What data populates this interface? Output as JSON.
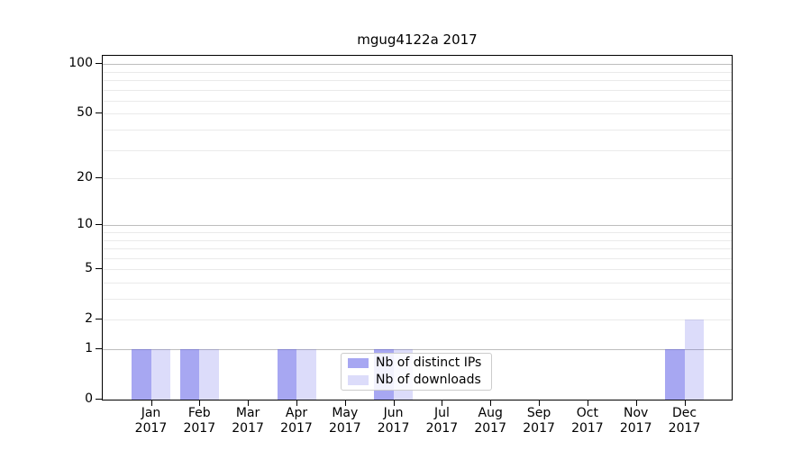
{
  "title": "mgug4122a 2017",
  "chart_data": {
    "type": "bar",
    "title": "mgug4122a 2017",
    "categories": [
      "Jan",
      "Feb",
      "Mar",
      "Apr",
      "May",
      "Jun",
      "Jul",
      "Aug",
      "Sep",
      "Oct",
      "Nov",
      "Dec"
    ],
    "x_sublabel": "2017",
    "series": [
      {
        "name": "Nb of distinct IPs",
        "color": "rgba(80,80,230,0.50)",
        "values": [
          1,
          1,
          0,
          1,
          0,
          1,
          0,
          0,
          0,
          0,
          0,
          1
        ]
      },
      {
        "name": "Nb of downloads",
        "color": "rgba(80,80,230,0.20)",
        "values": [
          1,
          1,
          0,
          1,
          0,
          1,
          0,
          0,
          0,
          0,
          0,
          2
        ]
      }
    ],
    "y_axis": {
      "scale": "log10(1+y)",
      "tick_values": [
        0,
        1,
        2,
        5,
        10,
        20,
        50,
        100
      ],
      "tick_labels": [
        "0",
        "1",
        "2",
        "5",
        "10",
        "20",
        "50",
        "100"
      ],
      "ylim": [
        0,
        112
      ],
      "minor_gridlines": [
        1,
        2,
        3,
        4,
        5,
        6,
        7,
        8,
        9,
        10,
        20,
        30,
        40,
        50,
        60,
        70,
        80,
        90,
        100
      ],
      "major_gridlines": [
        1,
        10,
        100
      ]
    },
    "legend_position": "inside-bottom-center",
    "grid": true
  },
  "colors": {
    "bar_distinct_ips": "rgba(80,80,230,0.50)",
    "bar_downloads": "rgba(80,80,230,0.20)",
    "grid_minor": "#eaeaea",
    "grid_major": "#bdbdbd",
    "axis": "#000000",
    "legend_border": "#cccccc"
  }
}
